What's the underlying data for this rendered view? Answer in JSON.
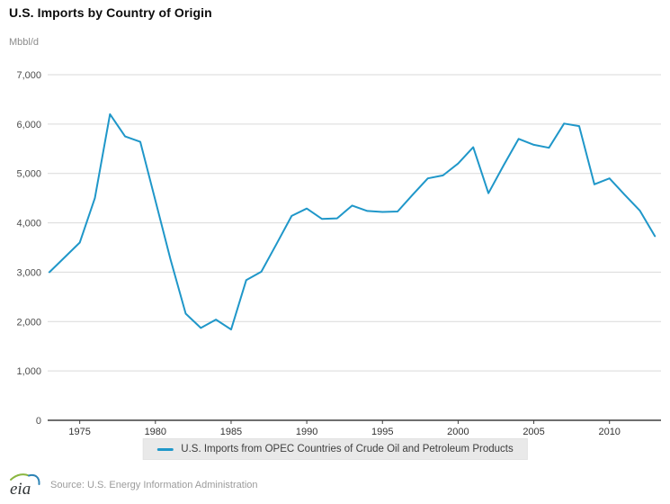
{
  "title": "U.S. Imports by Country of Origin",
  "unit_label": "Mbbl/d",
  "legend": {
    "label": "U.S. Imports from OPEC Countries of Crude Oil and Petroleum Products"
  },
  "footer": {
    "logo_text": "eia",
    "source": "Source: U.S. Energy Information Administration"
  },
  "colors": {
    "line": "#1f97c9",
    "grid": "#d9d9d9",
    "axis": "#3f3f3f",
    "y_tick_text": "#4d4d4d",
    "x_tick_text": "#333333",
    "legend_bg": "#e9e9e9"
  },
  "chart_data": {
    "type": "line",
    "title": "U.S. Imports by Country of Origin",
    "ylabel": "Mbbl/d",
    "xlabel": "",
    "grid": true,
    "legend_position": "bottom",
    "ylim": [
      0,
      7000
    ],
    "ytick_step": 1000,
    "xticks": [
      1975,
      1980,
      1985,
      1990,
      1995,
      2000,
      2005,
      2010
    ],
    "x": [
      1973,
      1974,
      1975,
      1976,
      1977,
      1978,
      1979,
      1980,
      1981,
      1982,
      1983,
      1984,
      1985,
      1986,
      1987,
      1988,
      1989,
      1990,
      1991,
      1992,
      1993,
      1994,
      1995,
      1996,
      1997,
      1998,
      1999,
      2000,
      2001,
      2002,
      2003,
      2004,
      2005,
      2006,
      2007,
      2008,
      2009,
      2010,
      2011,
      2012,
      2013
    ],
    "series": [
      {
        "name": "U.S. Imports from OPEC Countries of Crude Oil and Petroleum Products",
        "values": [
          3000,
          3300,
          3600,
          4500,
          6200,
          5750,
          5640,
          4450,
          3260,
          2160,
          1870,
          2040,
          1840,
          2840,
          3010,
          3570,
          4140,
          4290,
          4080,
          4090,
          4350,
          4240,
          4220,
          4230,
          4570,
          4900,
          4960,
          5200,
          5530,
          4600,
          5160,
          5700,
          5580,
          5520,
          6010,
          5960,
          4780,
          4900,
          4570,
          4250,
          3730
        ]
      }
    ]
  }
}
